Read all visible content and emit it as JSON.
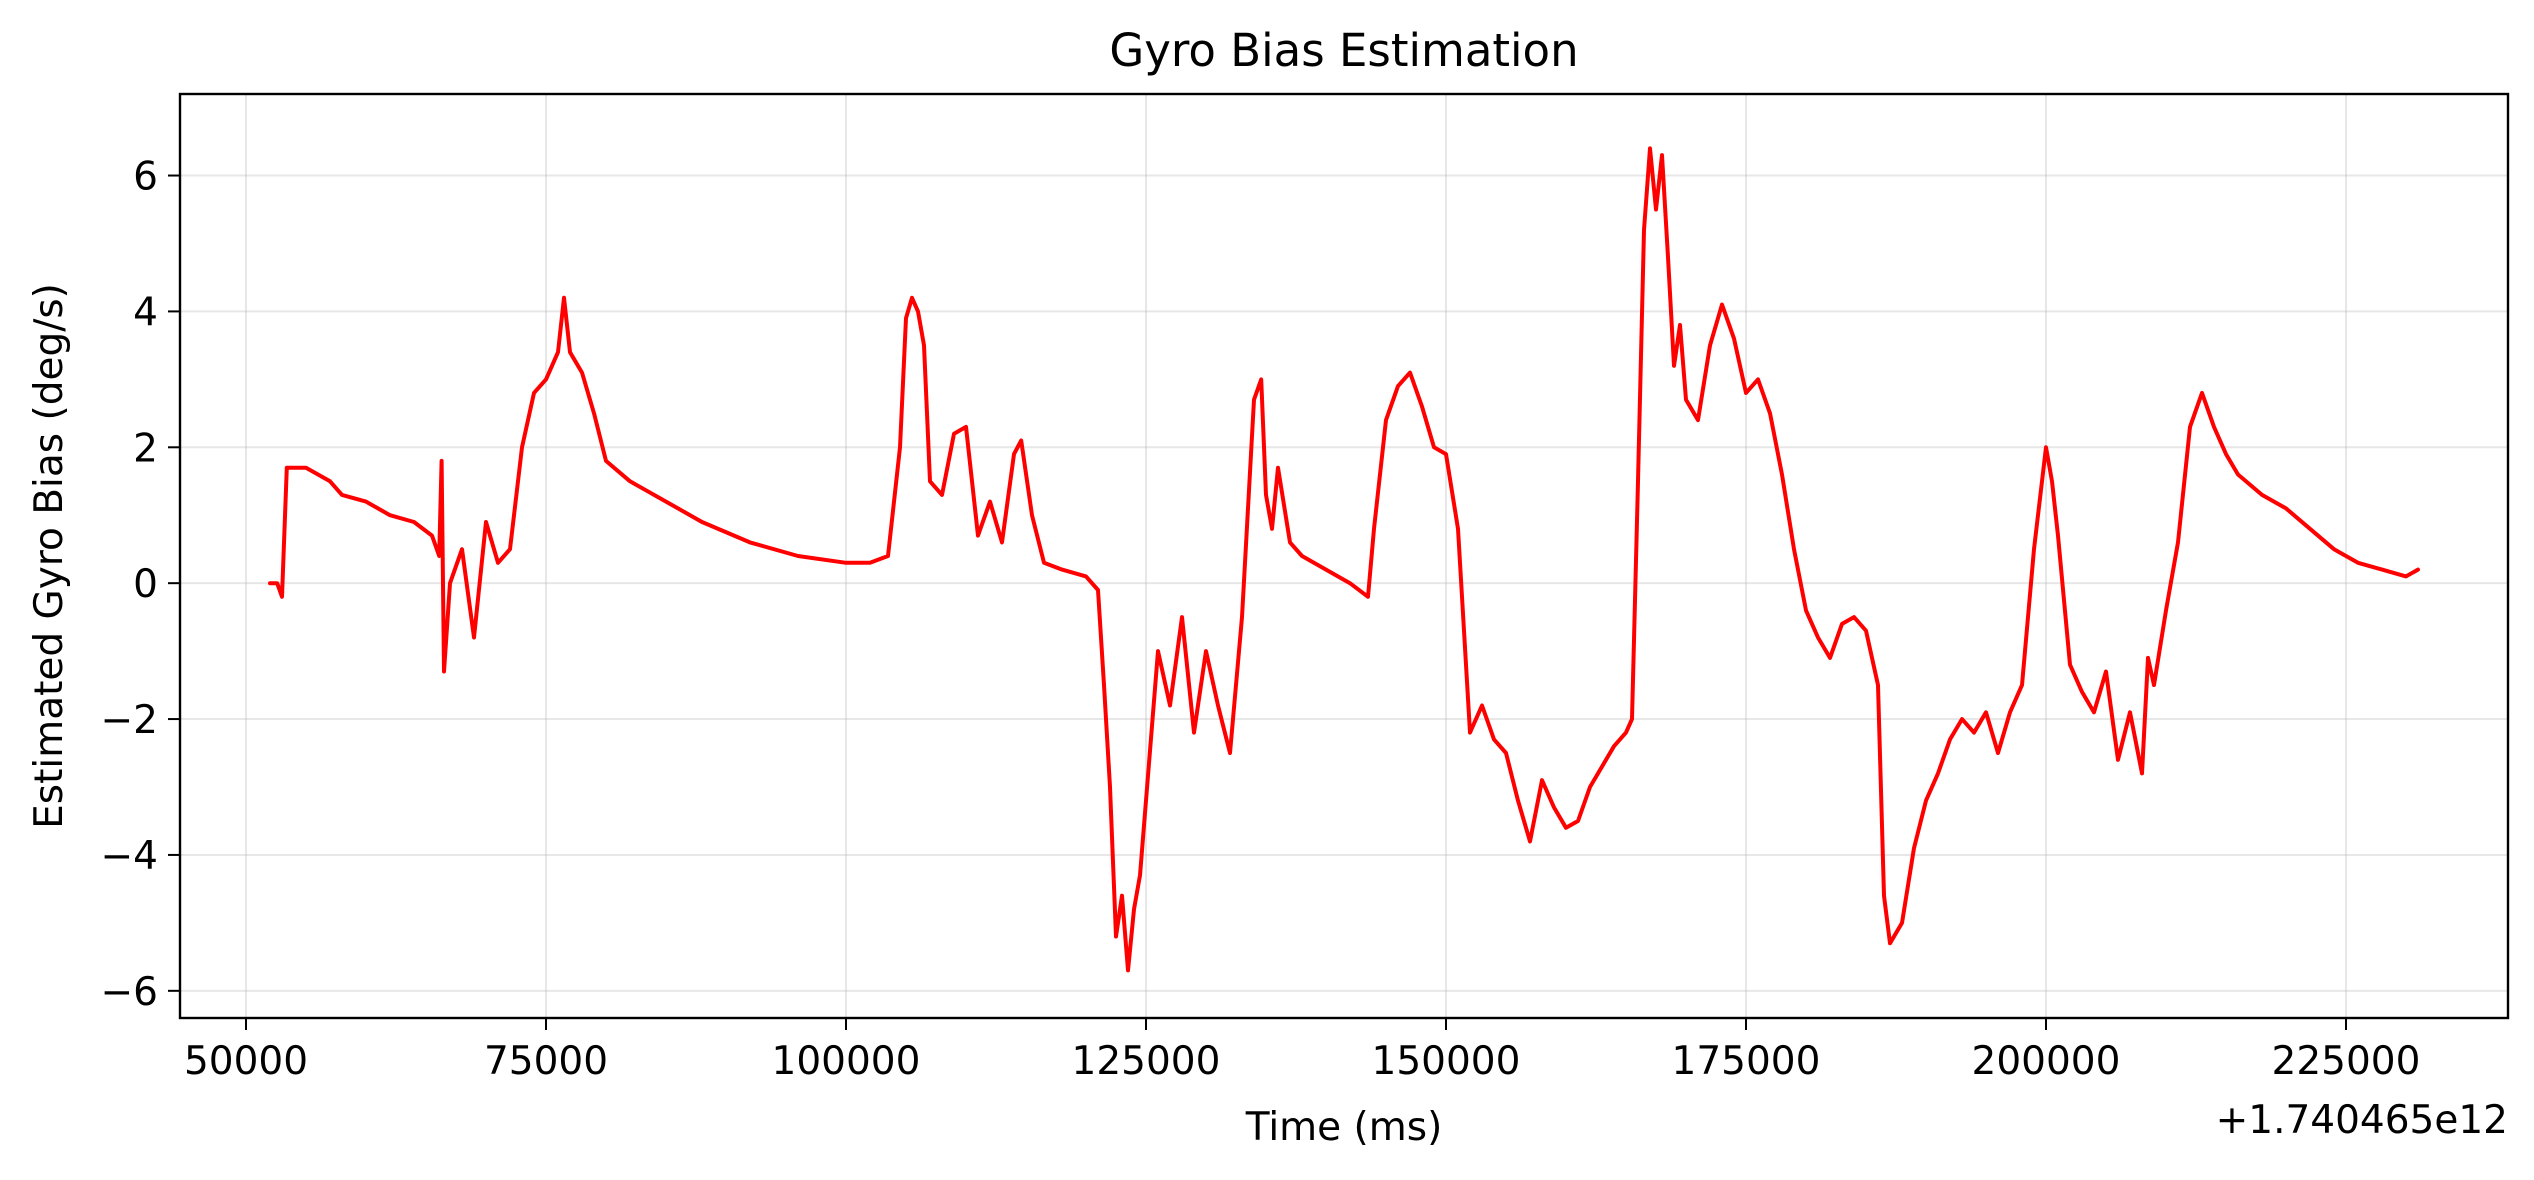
{
  "chart_data": {
    "type": "line",
    "title": "Gyro Bias Estimation",
    "xlabel": "Time (ms)",
    "ylabel": "Estimated Gyro Bias (deg/s)",
    "x_offset_label": "+1.740465e12",
    "xlim": [
      44500,
      238500
    ],
    "ylim": [
      -6.4,
      7.2
    ],
    "x_ticks": [
      50000,
      75000,
      100000,
      125000,
      150000,
      175000,
      200000,
      225000
    ],
    "x_tick_labels": [
      "50000",
      "75000",
      "100000",
      "125000",
      "150000",
      "175000",
      "200000",
      "225000"
    ],
    "y_ticks": [
      -6,
      -4,
      -2,
      0,
      2,
      4,
      6
    ],
    "y_tick_labels": [
      "−6",
      "−4",
      "−2",
      "0",
      "2",
      "4",
      "6"
    ],
    "grid": true,
    "legend": "none",
    "series": [
      {
        "color": "#ff0000",
        "x": [
          52000,
          52600,
          53000,
          53400,
          55000,
          57000,
          58000,
          60000,
          62000,
          64000,
          65500,
          66100,
          66300,
          66500,
          67000,
          68000,
          69000,
          70000,
          71000,
          72000,
          73000,
          74000,
          75000,
          76000,
          76500,
          77000,
          78000,
          79000,
          80000,
          82000,
          85000,
          88000,
          92000,
          96000,
          100000,
          102000,
          103500,
          104500,
          105000,
          105500,
          106000,
          106500,
          107000,
          108000,
          109000,
          110000,
          111000,
          112000,
          113000,
          114000,
          114600,
          115500,
          116500,
          118000,
          120000,
          121000,
          121500,
          122000,
          122500,
          123000,
          123500,
          124000,
          124500,
          125000,
          126000,
          127000,
          128000,
          129000,
          130000,
          131000,
          132000,
          133000,
          134000,
          134600,
          135000,
          135500,
          136000,
          137000,
          138000,
          140000,
          142000,
          143500,
          144000,
          145000,
          146000,
          147000,
          148000,
          149000,
          150000,
          151000,
          152000,
          153000,
          154000,
          155000,
          156000,
          157000,
          158000,
          159000,
          160000,
          161000,
          162000,
          163000,
          164000,
          165000,
          165500,
          166000,
          166500,
          167000,
          167500,
          168000,
          168500,
          169000,
          169500,
          170000,
          171000,
          172000,
          173000,
          174000,
          175000,
          176000,
          177000,
          178000,
          179000,
          180000,
          181000,
          182000,
          183000,
          184000,
          185000,
          186000,
          186500,
          187000,
          188000,
          189000,
          190000,
          191000,
          192000,
          193000,
          194000,
          195000,
          196000,
          197000,
          198000,
          199000,
          200000,
          200500,
          201000,
          202000,
          203000,
          204000,
          205000,
          206000,
          207000,
          208000,
          208500,
          209000,
          210000,
          211000,
          212000,
          213000,
          214000,
          215000,
          216000,
          218000,
          220000,
          222000,
          224000,
          226000,
          228000,
          230000,
          231000
        ],
        "y": [
          0.0,
          0.0,
          -0.2,
          1.7,
          1.7,
          1.5,
          1.3,
          1.2,
          1.0,
          0.9,
          0.7,
          0.4,
          1.8,
          -1.3,
          0.0,
          0.5,
          -0.8,
          0.9,
          0.3,
          0.5,
          2.0,
          2.8,
          3.0,
          3.4,
          4.2,
          3.4,
          3.1,
          2.5,
          1.8,
          1.5,
          1.2,
          0.9,
          0.6,
          0.4,
          0.3,
          0.3,
          0.4,
          2.0,
          3.9,
          4.2,
          4.0,
          3.5,
          1.5,
          1.3,
          2.2,
          2.3,
          0.7,
          1.2,
          0.6,
          1.9,
          2.1,
          1.0,
          0.3,
          0.2,
          0.1,
          -0.1,
          -1.5,
          -3.0,
          -5.2,
          -4.6,
          -5.7,
          -4.8,
          -4.3,
          -3.2,
          -1.0,
          -1.8,
          -0.5,
          -2.2,
          -1.0,
          -1.8,
          -2.5,
          -0.5,
          2.7,
          3.0,
          1.3,
          0.8,
          1.7,
          0.6,
          0.4,
          0.2,
          0.0,
          -0.2,
          0.8,
          2.4,
          2.9,
          3.1,
          2.6,
          2.0,
          1.9,
          0.8,
          -2.2,
          -1.8,
          -2.3,
          -2.5,
          -3.2,
          -3.8,
          -2.9,
          -3.3,
          -3.6,
          -3.5,
          -3.0,
          -2.7,
          -2.4,
          -2.2,
          -2.0,
          1.5,
          5.2,
          6.4,
          5.5,
          6.3,
          4.8,
          3.2,
          3.8,
          2.7,
          2.4,
          3.5,
          4.1,
          3.6,
          2.8,
          3.0,
          2.5,
          1.6,
          0.5,
          -0.4,
          -0.8,
          -1.1,
          -0.6,
          -0.5,
          -0.7,
          -1.5,
          -4.6,
          -5.3,
          -5.0,
          -3.9,
          -3.2,
          -2.8,
          -2.3,
          -2.0,
          -2.2,
          -1.9,
          -2.5,
          -1.9,
          -1.5,
          0.5,
          2.0,
          1.5,
          0.7,
          -1.2,
          -1.6,
          -1.9,
          -1.3,
          -2.6,
          -1.9,
          -2.8,
          -1.1,
          -1.5,
          -0.4,
          0.6,
          2.3,
          2.8,
          2.3,
          1.9,
          1.6,
          1.3,
          1.1,
          0.8,
          0.5,
          0.3,
          0.2,
          0.1,
          0.2
        ]
      }
    ]
  }
}
